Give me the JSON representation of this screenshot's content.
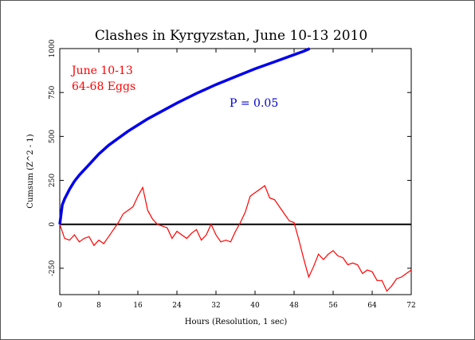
{
  "chart_data": {
    "type": "line",
    "title": "Clashes in Kyrgyzstan, June 10-13 2010",
    "xlabel": "Hours (Resolution, 1 sec)",
    "ylabel": "Cumsum (Z^2 - 1)",
    "xlim": [
      0,
      72
    ],
    "ylim": [
      -400,
      1000
    ],
    "x_ticks": [
      0,
      8,
      16,
      24,
      32,
      40,
      48,
      56,
      64,
      72
    ],
    "y_ticks": [
      -250,
      0,
      250,
      500,
      750,
      1000
    ],
    "grid": false,
    "annotations": [
      {
        "text": "June 10-13",
        "color": "#ff0000"
      },
      {
        "text": "64-68 Eggs",
        "color": "#ff0000"
      },
      {
        "text": "P = 0.05",
        "color": "#0000cc"
      }
    ],
    "series": [
      {
        "color": "#ff0000",
        "x": [
          0,
          1,
          2,
          3,
          4,
          5,
          6,
          7,
          8,
          9,
          10,
          11,
          12,
          13,
          14,
          15,
          16,
          17,
          18,
          19,
          20,
          21,
          22,
          23,
          24,
          25,
          26,
          27,
          28,
          29,
          30,
          31,
          32,
          33,
          34,
          35,
          36,
          37,
          38,
          39,
          40,
          41,
          42,
          43,
          44,
          45,
          46,
          47,
          48,
          49,
          50,
          51,
          52,
          53,
          54,
          55,
          56,
          57,
          58,
          59,
          60,
          61,
          62,
          63,
          64,
          65,
          66,
          67,
          68,
          69,
          70,
          71,
          72
        ],
        "y": [
          0,
          -80,
          -90,
          -60,
          -100,
          -80,
          -70,
          -120,
          -90,
          -110,
          -70,
          -30,
          10,
          60,
          80,
          100,
          160,
          210,
          80,
          30,
          0,
          -10,
          -20,
          -80,
          -40,
          -60,
          -80,
          -50,
          -30,
          -90,
          -60,
          0,
          -60,
          -100,
          -90,
          -100,
          -40,
          10,
          70,
          160,
          180,
          200,
          220,
          150,
          140,
          100,
          60,
          20,
          10,
          -90,
          -200,
          -300,
          -240,
          -170,
          -200,
          -170,
          -150,
          -180,
          -190,
          -230,
          -220,
          -230,
          -280,
          -260,
          -270,
          -320,
          -320,
          -380,
          -350,
          -310,
          -300,
          -280,
          -260
        ]
      },
      {
        "color": "#0000ee",
        "x": [
          0,
          0.5,
          1,
          2,
          3,
          4,
          6,
          8,
          10,
          12,
          14,
          16,
          18,
          20,
          24,
          28,
          32,
          36,
          40,
          44,
          48,
          50,
          51.2
        ],
        "y": [
          0,
          110,
          145,
          200,
          245,
          280,
          340,
          400,
          450,
          490,
          530,
          565,
          600,
          630,
          690,
          745,
          795,
          840,
          885,
          925,
          965,
          985,
          1000
        ]
      }
    ]
  }
}
